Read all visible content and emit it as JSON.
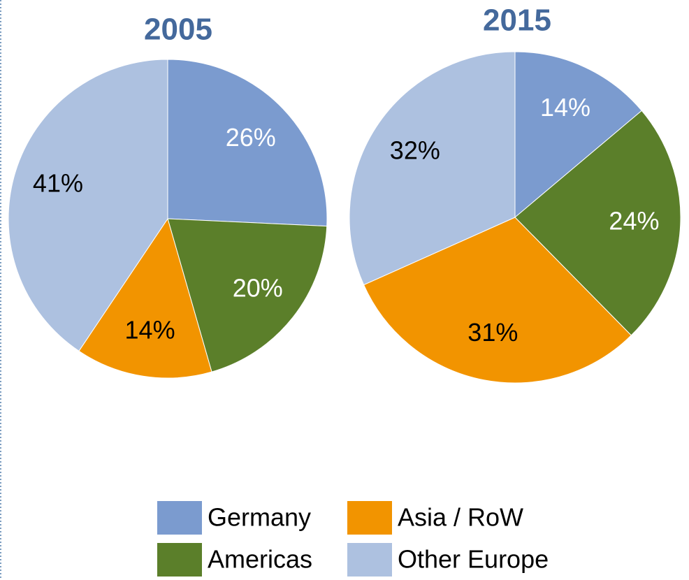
{
  "chart_data": [
    {
      "type": "pie",
      "title": "2005",
      "categories": [
        "Germany",
        "Americas",
        "Asia / RoW",
        "Other Europe"
      ],
      "values": [
        26,
        20,
        14,
        41
      ],
      "value_labels": [
        "26%",
        "20%",
        "14%",
        "41%"
      ],
      "colors": [
        "#7b9bcf",
        "#5b7f2a",
        "#f29400",
        "#adc1e0"
      ]
    },
    {
      "type": "pie",
      "title": "2015",
      "categories": [
        "Germany",
        "Americas",
        "Asia / RoW",
        "Other Europe"
      ],
      "values": [
        14,
        24,
        31,
        32
      ],
      "value_labels": [
        "14%",
        "24%",
        "31%",
        "32%"
      ],
      "colors": [
        "#7b9bcf",
        "#5b7f2a",
        "#f29400",
        "#adc1e0"
      ]
    }
  ]
}
